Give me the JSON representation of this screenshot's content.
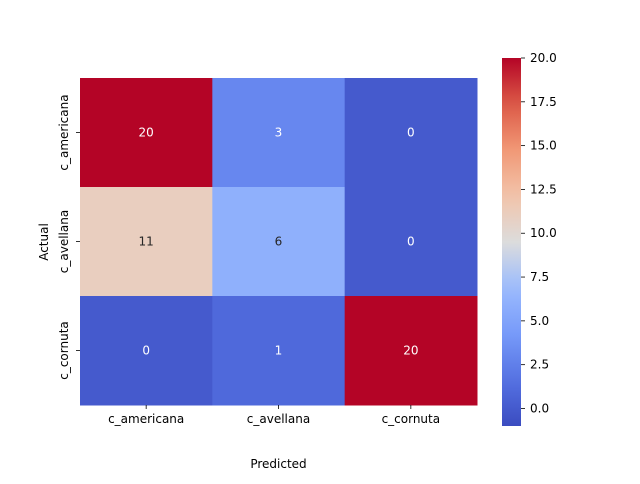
{
  "chart_data": {
    "type": "heatmap",
    "title": "",
    "xlabel": "Predicted",
    "ylabel": "Actual",
    "x_categories": [
      "c_americana",
      "c_avellana",
      "c_cornuta"
    ],
    "y_categories": [
      "c_americana",
      "c_avellana",
      "c_cornuta"
    ],
    "values": [
      [
        20,
        3,
        0
      ],
      [
        11,
        6,
        0
      ],
      [
        0,
        1,
        20
      ]
    ],
    "colormap": "coolwarm",
    "colorbar": {
      "min": -1,
      "max": 20,
      "ticks": [
        -0.0,
        2.5,
        5.0,
        7.5,
        10.0,
        12.5,
        15.0,
        17.5,
        20.0
      ],
      "tick_labels": [
        "0.0",
        "2.5",
        "5.0",
        "7.5",
        "10.0",
        "12.5",
        "15.0",
        "17.5",
        "20.0"
      ]
    },
    "annotations": true,
    "grid": false
  }
}
